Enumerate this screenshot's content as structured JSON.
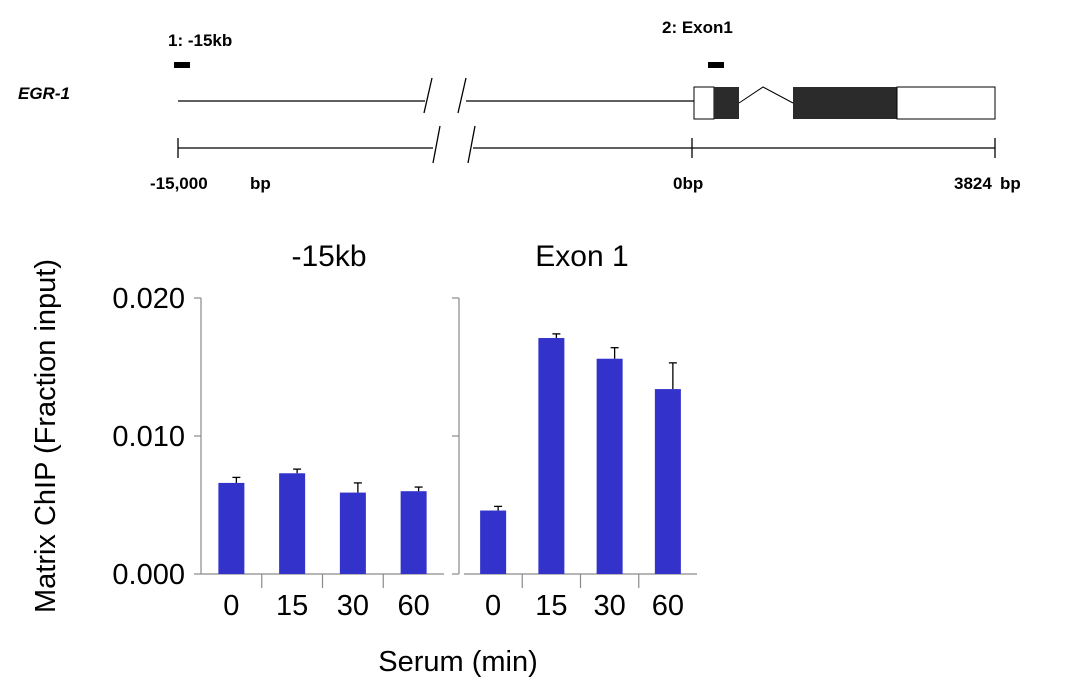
{
  "gene_map": {
    "gene_name": "EGR-1",
    "primers": [
      {
        "label": "1: -15kb"
      },
      {
        "label": "2: Exon1"
      }
    ],
    "scale_labels": {
      "left": "-15,000",
      "left_unit": "bp",
      "middle": "0bp",
      "right": "3824",
      "right_unit": "bp"
    },
    "colors": {
      "exon": "#2b2b2b",
      "line": "#000000"
    }
  },
  "chart_data": [
    {
      "type": "bar",
      "title": "-15kb",
      "categories": [
        "0",
        "15",
        "30",
        "60"
      ],
      "values": [
        0.0066,
        0.0073,
        0.0059,
        0.006
      ],
      "errors": [
        0.0004,
        0.0003,
        0.0007,
        0.0003
      ],
      "ylim": [
        0,
        0.02
      ],
      "yticks": [
        0.0,
        0.01,
        0.02
      ],
      "ytick_labels": [
        "0.000",
        "0.010",
        "0.020"
      ],
      "color": "#3333cc"
    },
    {
      "type": "bar",
      "title": "Exon 1",
      "categories": [
        "0",
        "15",
        "30",
        "60"
      ],
      "values": [
        0.0046,
        0.0171,
        0.0156,
        0.0134
      ],
      "errors": [
        0.0003,
        0.0003,
        0.0008,
        0.0019
      ],
      "ylim": [
        0,
        0.02
      ],
      "yticks": [
        0.0,
        0.01,
        0.02
      ],
      "color": "#3333cc"
    }
  ],
  "axes": {
    "ylabel": "Matrix ChIP (Fraction input)",
    "xlabel": "Serum (min)"
  }
}
